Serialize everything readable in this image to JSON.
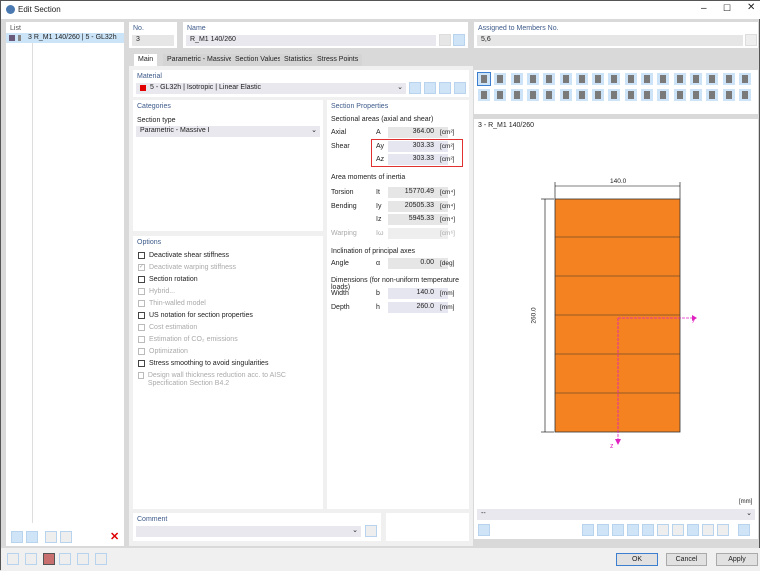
{
  "window": {
    "title": "Edit Section"
  },
  "list": {
    "header": "List",
    "items": [
      {
        "label": "3  R_M1 140/260 | 5 - GL32h"
      }
    ]
  },
  "no": {
    "label": "No.",
    "value": "3"
  },
  "name": {
    "label": "Name",
    "value": "R_M1 140/260"
  },
  "assigned": {
    "label": "Assigned to Members No.",
    "value": "5,6"
  },
  "tabs": [
    "Main",
    "Parametric - Massive I",
    "Section Values",
    "Statistics",
    "Stress Points"
  ],
  "material": {
    "label": "Material",
    "value": "5 - GL32h | Isotropic | Linear Elastic",
    "color": "#e00000"
  },
  "categories": {
    "header": "Categories",
    "section_type_label": "Section type",
    "section_type": "Parametric - Massive I"
  },
  "options": {
    "header": "Options",
    "items": [
      {
        "label": "Deactivate shear stiffness",
        "checked": false,
        "enabled": true
      },
      {
        "label": "Deactivate warping stiffness",
        "checked": true,
        "enabled": false
      },
      {
        "label": "Section rotation",
        "checked": false,
        "enabled": true
      },
      {
        "label": "Hybrid...",
        "checked": false,
        "enabled": false
      },
      {
        "label": "Thin-walled model",
        "checked": false,
        "enabled": false
      },
      {
        "label": "US notation for section properties",
        "checked": false,
        "enabled": true
      },
      {
        "label": "Cost estimation",
        "checked": false,
        "enabled": false
      },
      {
        "label": "Estimation of CO₂ emissions",
        "checked": false,
        "enabled": false
      },
      {
        "label": "Optimization",
        "checked": false,
        "enabled": false
      },
      {
        "label": "Stress smoothing to avoid singularities",
        "checked": false,
        "enabled": true
      },
      {
        "label": "Design wall thickness reduction acc. to AISC Specification Section B4.2",
        "checked": false,
        "enabled": false
      }
    ]
  },
  "props": {
    "header": "Section Properties",
    "areas_title": "Sectional areas (axial and shear)",
    "axial": {
      "label": "Axial",
      "sym": "A",
      "value": "364.00",
      "unit": "[cm²]"
    },
    "shear_label": "Shear",
    "ay": {
      "sym": "Ay",
      "value": "303.33",
      "unit": "[cm²]"
    },
    "az": {
      "sym": "Az",
      "value": "303.33",
      "unit": "[cm²]"
    },
    "inertia_title": "Area moments of inertia",
    "torsion": {
      "label": "Torsion",
      "sym": "It",
      "value": "15770.49",
      "unit": "[cm⁴]"
    },
    "bending_label": "Bending",
    "iy": {
      "sym": "Iy",
      "value": "20505.33",
      "unit": "[cm⁴]"
    },
    "iz": {
      "sym": "Iz",
      "value": "5945.33",
      "unit": "[cm⁴]"
    },
    "warping": {
      "label": "Warping",
      "sym": "Iω",
      "value": "",
      "unit": "[cm⁶]"
    },
    "incl_title": "Inclination of principal axes",
    "angle": {
      "label": "Angle",
      "sym": "α",
      "value": "0.00",
      "unit": "[deg]"
    },
    "dim_title": "Dimensions (for non-uniform temperature loads)",
    "width": {
      "label": "Width",
      "sym": "b",
      "value": "140.0",
      "unit": "[mm]"
    },
    "depth": {
      "label": "Depth",
      "sym": "h",
      "value": "260.0",
      "unit": "[mm]"
    }
  },
  "preview": {
    "title": "3 - R_M1 140/260",
    "dim_width": "140.0",
    "dim_height": "260.0",
    "axis_y": "y",
    "axis_z": "z",
    "unit": "[mm]",
    "dropdown": "--",
    "fill_color": "#f58220",
    "axis_color": "#e020c0"
  },
  "comment": {
    "label": "Comment",
    "value": ""
  },
  "buttons": {
    "ok": "OK",
    "cancel": "Cancel",
    "apply": "Apply"
  }
}
